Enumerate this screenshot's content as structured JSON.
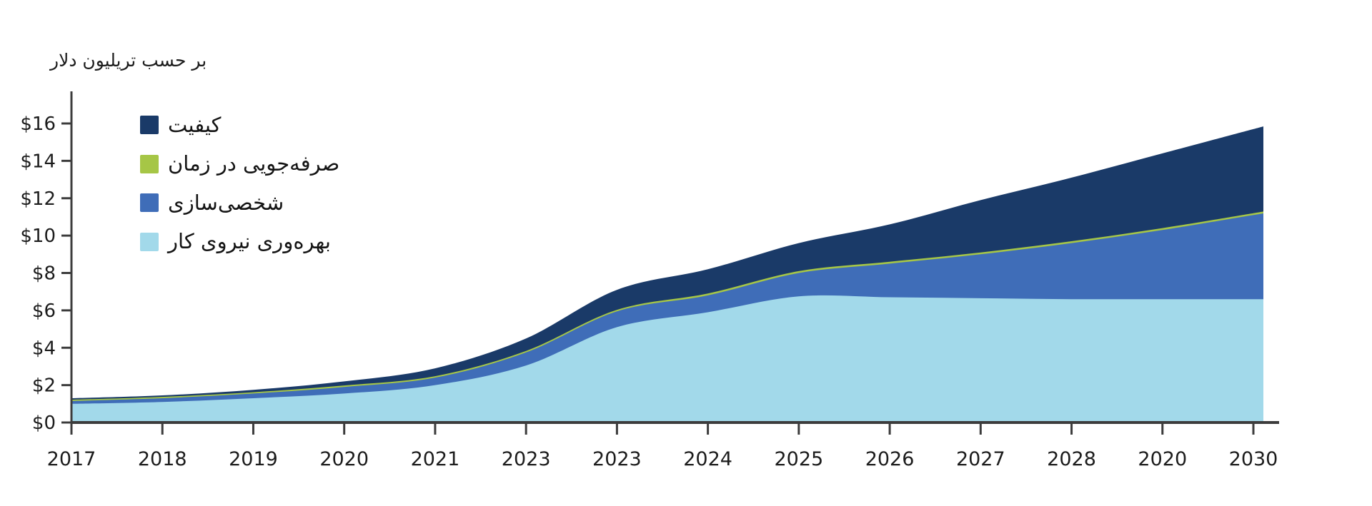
{
  "title": "بر حسب تریلیون دلار",
  "colors": {
    "background": "#ffffff",
    "axis": "#3c3c3c",
    "text": "#1c1c1c",
    "quality_navy": "#1a3a68",
    "time_savings_green": "#a6c646",
    "personalization_blue": "#3f6db8",
    "labor_light_blue": "#a2d9ea"
  },
  "chart_data": {
    "type": "area",
    "stacked": true,
    "title": "بر حسب تریلیون دلار",
    "y_unit": "trillion dollars",
    "ylim": [
      0,
      16
    ],
    "y_tick_step": 2,
    "y_tick_labels": [
      "$0",
      "$2",
      "$4",
      "$6",
      "$8",
      "$10",
      "$12",
      "$14",
      "$16"
    ],
    "x_labels": [
      "2017",
      "2018",
      "2019",
      "2020",
      "2021",
      "2023",
      "2023",
      "2024",
      "2025",
      "2026",
      "2027",
      "2028",
      "2020",
      "2030"
    ],
    "grid": false,
    "legend_position": "inside-top-left",
    "legend_order_top_to_bottom": [
      "کیفیت",
      "صرفه‌جویی در زمان",
      "شخصی‌سازی",
      "بهره‌وری نیروی کار"
    ],
    "series": [
      {
        "name": "بهره‌وری نیروی کار",
        "name_en": "labor-productivity",
        "color": "#a2d9ea",
        "values": [
          1.0,
          1.1,
          1.3,
          1.55,
          2.0,
          3.05,
          5.1,
          5.9,
          6.75,
          6.7,
          6.65,
          6.6,
          6.6,
          6.6
        ]
      },
      {
        "name": "شخصی‌سازی",
        "name_en": "personalization",
        "color": "#3f6db8",
        "values": [
          0.15,
          0.2,
          0.25,
          0.35,
          0.4,
          0.7,
          0.85,
          0.9,
          1.25,
          1.8,
          2.35,
          3.0,
          3.7,
          4.5
        ]
      },
      {
        "name": "صرفه‌جویی در زمان",
        "name_en": "time-savings",
        "color": "#a6c646",
        "values": [
          0.07,
          0.07,
          0.07,
          0.08,
          0.08,
          0.08,
          0.08,
          0.1,
          0.1,
          0.1,
          0.1,
          0.1,
          0.1,
          0.1
        ]
      },
      {
        "name": "کیفیت",
        "name_en": "quality",
        "color": "#1a3a68",
        "values": [
          0.08,
          0.08,
          0.13,
          0.22,
          0.42,
          0.67,
          1.07,
          1.3,
          1.5,
          2.0,
          2.8,
          3.4,
          4.0,
          4.5
        ]
      }
    ],
    "totals": [
      1.3,
      1.45,
      1.75,
      2.2,
      2.9,
      4.5,
      7.1,
      8.2,
      9.6,
      10.6,
      11.9,
      13.1,
      14.4,
      15.7
    ]
  }
}
